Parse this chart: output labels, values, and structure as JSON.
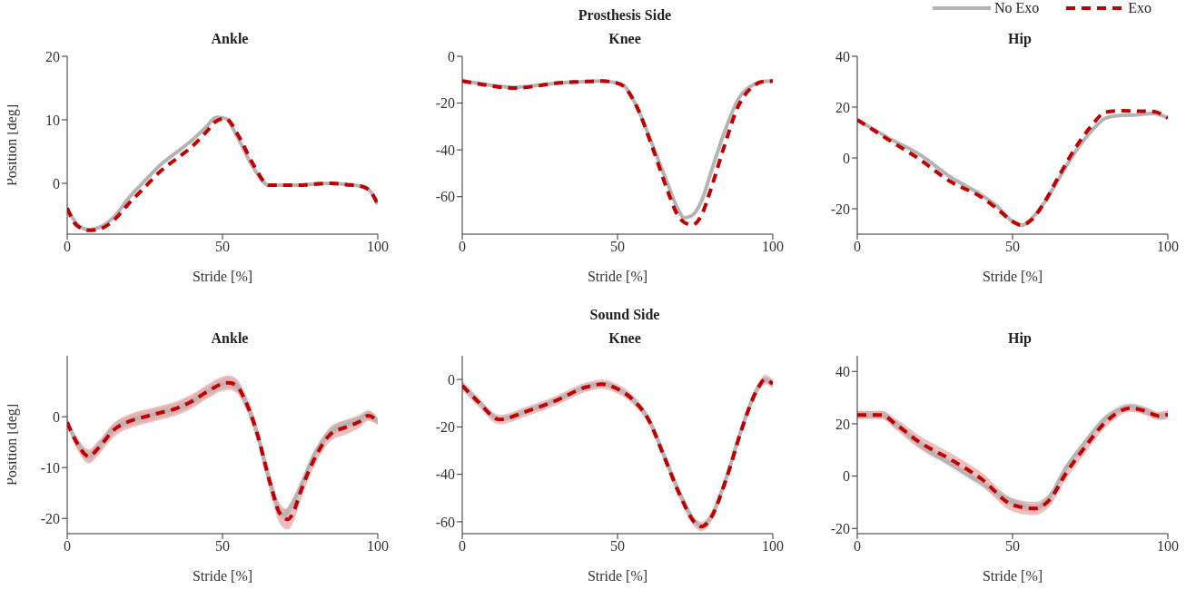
{
  "chart_data": [
    {
      "type": "line",
      "title": "Ankle",
      "xlabel": "Stride [%]",
      "ylabel": "Position [deg]",
      "xlim": [
        0,
        100
      ],
      "xticks": [
        0,
        50,
        100
      ],
      "ylim": [
        -8,
        20
      ],
      "yticks": [
        0,
        10,
        20
      ],
      "x": [
        0,
        3,
        7,
        11,
        15,
        20,
        25,
        30,
        35,
        40,
        45,
        48,
        51,
        55,
        60,
        65,
        70,
        75,
        80,
        85,
        90,
        95,
        98,
        100
      ],
      "series": [
        {
          "color": "#b4b4b4",
          "line_style": "solid",
          "values": [
            -3.9,
            -6.3,
            -7.3,
            -6.8,
            -5.3,
            -2.2,
            0.4,
            2.9,
            4.8,
            6.7,
            9,
            10.4,
            10.2,
            7.1,
            2.4,
            -0.3,
            -0.3,
            -0.3,
            -0.1,
            0,
            -0.2,
            -0.5,
            -1.5,
            -3.3
          ]
        },
        {
          "color": "#c00000",
          "line_style": "dashed",
          "values": [
            -3.9,
            -6.6,
            -7.4,
            -7.1,
            -5.8,
            -3.1,
            -0.6,
            1.9,
            3.8,
            5.7,
            8.2,
            9.8,
            10.2,
            7.6,
            2.9,
            -0.3,
            -0.3,
            -0.3,
            -0.1,
            0,
            -0.2,
            -0.5,
            -1.5,
            -3.3
          ]
        }
      ]
    },
    {
      "type": "line",
      "title": "Knee",
      "annotations": [
        "Prosthesis Side"
      ],
      "xlabel": "Stride [%]",
      "xlim": [
        0,
        100
      ],
      "xticks": [
        0,
        50,
        100
      ],
      "ylim": [
        -76,
        0
      ],
      "yticks": [
        -60,
        -40,
        -20,
        0
      ],
      "x": [
        0,
        5,
        10,
        17,
        25,
        30,
        36,
        40,
        45,
        49,
        52,
        56,
        61,
        66,
        69,
        71.5,
        74,
        77,
        80,
        84,
        89,
        94,
        97,
        100
      ],
      "series": [
        {
          "color": "#b4b4b4",
          "line_style": "solid",
          "values": [
            -10.6,
            -11.5,
            -12.5,
            -13.3,
            -12.3,
            -11.5,
            -11,
            -10.8,
            -10.6,
            -11.2,
            -12.5,
            -21,
            -37,
            -54,
            -64,
            -69,
            -68,
            -62,
            -50,
            -34,
            -18,
            -12,
            -10.8,
            -10.6
          ]
        },
        {
          "color": "#c00000",
          "line_style": "dashed",
          "values": [
            -10.6,
            -11.7,
            -12.8,
            -13.6,
            -12.5,
            -11.5,
            -11,
            -10.8,
            -10.6,
            -11.2,
            -12.8,
            -21,
            -38,
            -57,
            -67,
            -71,
            -72,
            -68,
            -57,
            -40,
            -21,
            -12.5,
            -10.8,
            -10.6
          ]
        }
      ]
    },
    {
      "type": "line",
      "title": "Hip",
      "xlabel": "Stride [%]",
      "legend": "top right",
      "xlim": [
        0,
        100
      ],
      "xticks": [
        0,
        50,
        100
      ],
      "ylim": [
        -30,
        40
      ],
      "yticks": [
        -20,
        0,
        20,
        40
      ],
      "x": [
        0,
        10,
        20,
        30,
        40,
        45,
        50,
        53,
        56,
        60,
        65,
        70,
        75,
        80,
        85,
        90,
        95,
        100
      ],
      "series": [
        {
          "name": "No Exo",
          "color": "#b4b4b4",
          "line_style": "solid",
          "values": [
            15,
            7.9,
            1.4,
            -7.5,
            -14.6,
            -19,
            -25,
            -26.5,
            -24,
            -18,
            -8,
            2,
            10,
            15.7,
            16.8,
            17,
            17.5,
            15.7
          ]
        },
        {
          "name": "Exo",
          "color": "#c00000",
          "line_style": "dashed",
          "values": [
            15,
            7.2,
            -0.5,
            -9.3,
            -15.5,
            -20,
            -25,
            -26.5,
            -24.5,
            -18,
            -7,
            3.5,
            12,
            18,
            18.6,
            18.4,
            18.3,
            15.7
          ]
        }
      ]
    },
    {
      "type": "line",
      "title": "Ankle",
      "xlabel": "Stride [%]",
      "ylabel": "Position [deg]",
      "xlim": [
        0,
        100
      ],
      "xticks": [
        0,
        50,
        100
      ],
      "ylim": [
        -23,
        12
      ],
      "yticks": [
        -20,
        -10,
        0
      ],
      "x": [
        0,
        3,
        7,
        10,
        15,
        20,
        25,
        30,
        35,
        40,
        45,
        50,
        52,
        55,
        57,
        60,
        62,
        64,
        66,
        68,
        70,
        71,
        73,
        75,
        80,
        85,
        90,
        94,
        97,
        100
      ],
      "series": [
        {
          "color": "#b4b4b4",
          "line_style": "solid",
          "values": [
            -1.1,
            -5,
            -7.8,
            -6,
            -2.4,
            -0.8,
            0,
            0.8,
            1.6,
            3,
            4.9,
            6.5,
            6.7,
            5.8,
            3.6,
            -1,
            -5.1,
            -10,
            -14.2,
            -18,
            -19.3,
            -18.5,
            -16.5,
            -13.9,
            -6.9,
            -2.9,
            -1.4,
            -0.4,
            0.4,
            -0.9
          ],
          "lower": [
            -1.8,
            -6,
            -8.8,
            -7,
            -3.4,
            -1.8,
            -1,
            -0.2,
            0.6,
            2,
            3.9,
            5.5,
            5.7,
            4.8,
            2.6,
            -2,
            -6.1,
            -11,
            -15.2,
            -19,
            -20.3,
            -19.5,
            -17.5,
            -14.9,
            -7.9,
            -3.9,
            -2.4,
            -1.4,
            -0.6,
            -1.6
          ],
          "upper": [
            -0.4,
            -4,
            -6.8,
            -5,
            -1.4,
            0.2,
            1,
            1.8,
            2.6,
            4,
            5.9,
            7.5,
            7.7,
            6.8,
            4.6,
            0,
            -4.1,
            -9,
            -13.2,
            -17,
            -18.3,
            -17.5,
            -15.5,
            -12.9,
            -5.9,
            -1.9,
            -0.4,
            0.6,
            1.4,
            -0.2
          ]
        },
        {
          "color": "#c00000",
          "line_style": "dashed",
          "values": [
            -1.1,
            -5,
            -7.8,
            -6.2,
            -2.6,
            -0.9,
            0,
            0.8,
            1.6,
            3,
            4.9,
            6.5,
            6.7,
            5.8,
            3.6,
            -1,
            -5.1,
            -10,
            -14.5,
            -18.5,
            -20,
            -20.2,
            -18.5,
            -15,
            -7.8,
            -3.3,
            -2,
            -1,
            0.2,
            -0.9
          ],
          "lower": [
            -1.8,
            -6.2,
            -9.2,
            -7.6,
            -4,
            -2.3,
            -1.4,
            -0.6,
            0.2,
            1.6,
            3.5,
            5.1,
            5.3,
            4.4,
            2.2,
            -2.6,
            -6.7,
            -11.8,
            -16.5,
            -20.5,
            -22,
            -22.2,
            -20.5,
            -16.8,
            -9.2,
            -4.7,
            -3.4,
            -2.2,
            -0.8,
            -1.6
          ],
          "upper": [
            -0.4,
            -3.8,
            -6.4,
            -4.8,
            -1.2,
            0.5,
            1.4,
            2.2,
            3,
            4.4,
            6.3,
            7.9,
            8.1,
            7.2,
            5,
            0.6,
            -3.5,
            -8.2,
            -12.5,
            -16.5,
            -18,
            -18.2,
            -16.5,
            -13.2,
            -6.4,
            -1.9,
            -0.6,
            0.2,
            1.2,
            -0.2
          ]
        }
      ]
    },
    {
      "type": "line",
      "title": "Knee",
      "annotations": [
        "Sound Side"
      ],
      "xlabel": "Stride [%]",
      "xlim": [
        0,
        100
      ],
      "xticks": [
        0,
        50,
        100
      ],
      "ylim": [
        -65,
        10
      ],
      "yticks": [
        -60,
        -40,
        -20,
        0
      ],
      "x": [
        0,
        5,
        12,
        20,
        30,
        40,
        45,
        50,
        55,
        60,
        65,
        70,
        75,
        77,
        80,
        85,
        90,
        95,
        97.5,
        100
      ],
      "series": [
        {
          "color": "#b4b4b4",
          "line_style": "solid",
          "values": [
            -2.6,
            -8.9,
            -16.7,
            -13.6,
            -8.9,
            -3.1,
            -1.9,
            -3.9,
            -8.5,
            -16.7,
            -32,
            -47.7,
            -60,
            -62,
            -58,
            -41.5,
            -20.5,
            -3.9,
            0,
            -1.9
          ],
          "lower": [
            -3.6,
            -9.9,
            -17.7,
            -14.6,
            -9.9,
            -4.1,
            -2.9,
            -4.9,
            -9.5,
            -17.7,
            -33,
            -48.7,
            -61,
            -63,
            -59,
            -42.5,
            -21.5,
            -4.9,
            -1,
            -2.9
          ],
          "upper": [
            -1.6,
            -7.9,
            -15.7,
            -12.6,
            -7.9,
            -2.1,
            -0.9,
            -2.9,
            -7.5,
            -15.7,
            -31,
            -46.7,
            -59,
            -61,
            -57,
            -40.5,
            -19.5,
            -2.9,
            1,
            -0.9
          ]
        },
        {
          "color": "#c00000",
          "line_style": "dashed",
          "values": [
            -2.6,
            -9.2,
            -16.9,
            -13.8,
            -9,
            -3.2,
            -2,
            -4,
            -8.6,
            -17,
            -32.5,
            -48.5,
            -60.5,
            -62,
            -58.5,
            -42,
            -21,
            -4.2,
            0,
            -1.9
          ],
          "lower": [
            -4.6,
            -11.2,
            -18.9,
            -15.8,
            -11,
            -5.2,
            -4,
            -6,
            -10.6,
            -19,
            -34.5,
            -50.5,
            -62.5,
            -64,
            -60.5,
            -44,
            -23,
            -6.2,
            -2,
            -3.9
          ],
          "upper": [
            -0.6,
            -7.2,
            -14.9,
            -11.8,
            -7,
            -1.2,
            0,
            -2,
            -6.6,
            -15,
            -30.5,
            -46.5,
            -58.5,
            -60,
            -56.5,
            -40,
            -19,
            -2.2,
            2,
            0.1
          ]
        }
      ]
    },
    {
      "type": "line",
      "title": "Hip",
      "xlabel": "Stride [%]",
      "xlim": [
        0,
        100
      ],
      "xticks": [
        0,
        50,
        100
      ],
      "ylim": [
        -22,
        46
      ],
      "yticks": [
        -20,
        0,
        20,
        40
      ],
      "x": [
        0,
        8,
        12,
        20,
        30,
        40,
        50,
        57,
        62,
        67,
        73,
        80,
        88,
        93,
        97,
        100
      ],
      "series": [
        {
          "color": "#b4b4b4",
          "line_style": "solid",
          "values": [
            23.4,
            23.4,
            20.2,
            12.4,
            4.6,
            -2.8,
            -9.9,
            -12.4,
            -7.8,
            2.8,
            12.4,
            22.3,
            26.6,
            24.8,
            23,
            23.6
          ],
          "lower": [
            21.9,
            21.9,
            18.7,
            10.9,
            3.1,
            -4.3,
            -11.4,
            -13.9,
            -9.3,
            1.3,
            10.9,
            20.8,
            25.1,
            23.3,
            21.5,
            22.1
          ],
          "upper": [
            24.9,
            24.9,
            21.7,
            13.9,
            6.1,
            -1.3,
            -8.4,
            -10.9,
            -6.3,
            4.3,
            13.9,
            23.8,
            28.1,
            26.3,
            24.5,
            25.1
          ]
        },
        {
          "color": "#c00000",
          "line_style": "dashed",
          "values": [
            23.4,
            23.4,
            20.2,
            13,
            6.4,
            -1.1,
            -11,
            -12.4,
            -9,
            0.7,
            10.6,
            20.7,
            26,
            24.8,
            23,
            23.6
          ],
          "lower": [
            21.9,
            21.9,
            18.2,
            10.5,
            3.9,
            -3.6,
            -13.5,
            -14.9,
            -11.5,
            -1.8,
            8.1,
            18.7,
            24.5,
            23.3,
            21.5,
            22.1
          ],
          "upper": [
            24.9,
            24.9,
            22.2,
            15.5,
            8.9,
            1.4,
            -8.5,
            -9.9,
            -6.5,
            3.2,
            13.1,
            22.7,
            27.5,
            26.3,
            24.5,
            25.1
          ]
        }
      ]
    }
  ]
}
